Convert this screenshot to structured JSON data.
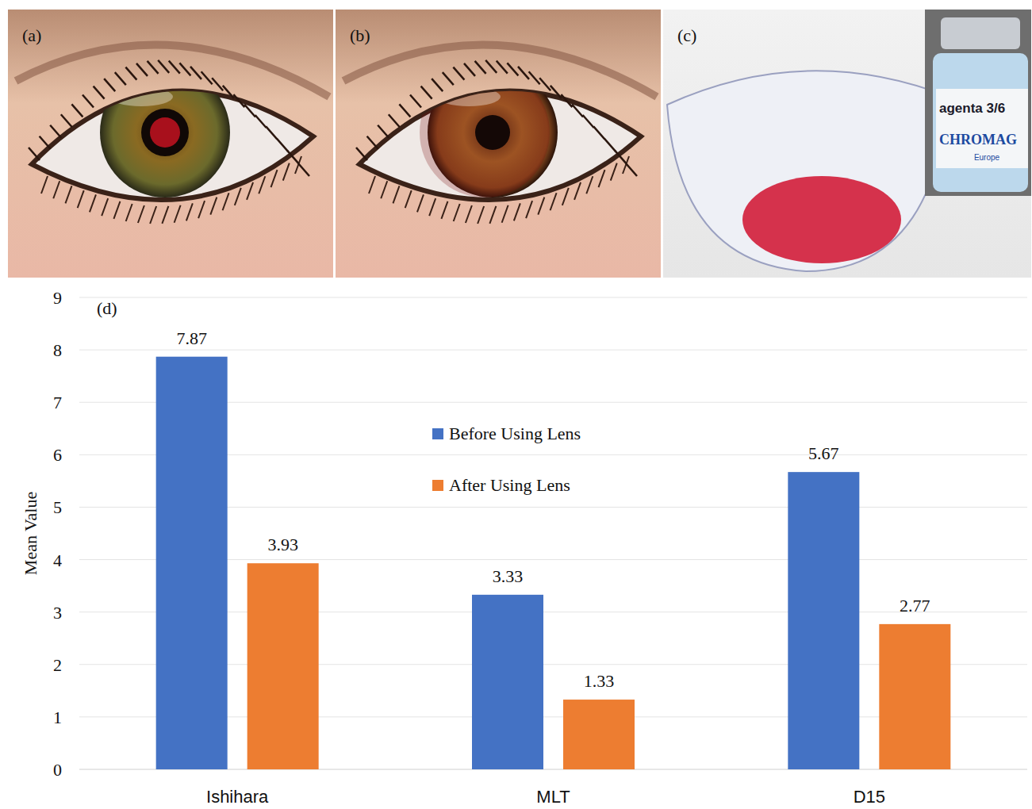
{
  "panels": [
    {
      "label": "(a)"
    },
    {
      "label": "(b)"
    },
    {
      "label": "(c)",
      "bottle_text": [
        "agenta 3/6",
        "CHROMAG",
        "Europe"
      ]
    }
  ],
  "chart_data": {
    "type": "bar",
    "panel_label": "(d)",
    "categories": [
      "Ishihara",
      "MLT",
      "D15"
    ],
    "series": [
      {
        "name": "Before Using Lens",
        "color": "#4472c4",
        "values": [
          7.87,
          3.33,
          5.67
        ]
      },
      {
        "name": "After Using Lens",
        "color": "#ed7d31",
        "values": [
          3.93,
          1.33,
          2.77
        ]
      }
    ],
    "y_label": "Mean Value",
    "ylim": [
      0,
      9
    ],
    "yticks": [
      0,
      1,
      2,
      3,
      4,
      5,
      6,
      7,
      8,
      9
    ],
    "grid": true,
    "legend": "center",
    "data_labels": true
  }
}
